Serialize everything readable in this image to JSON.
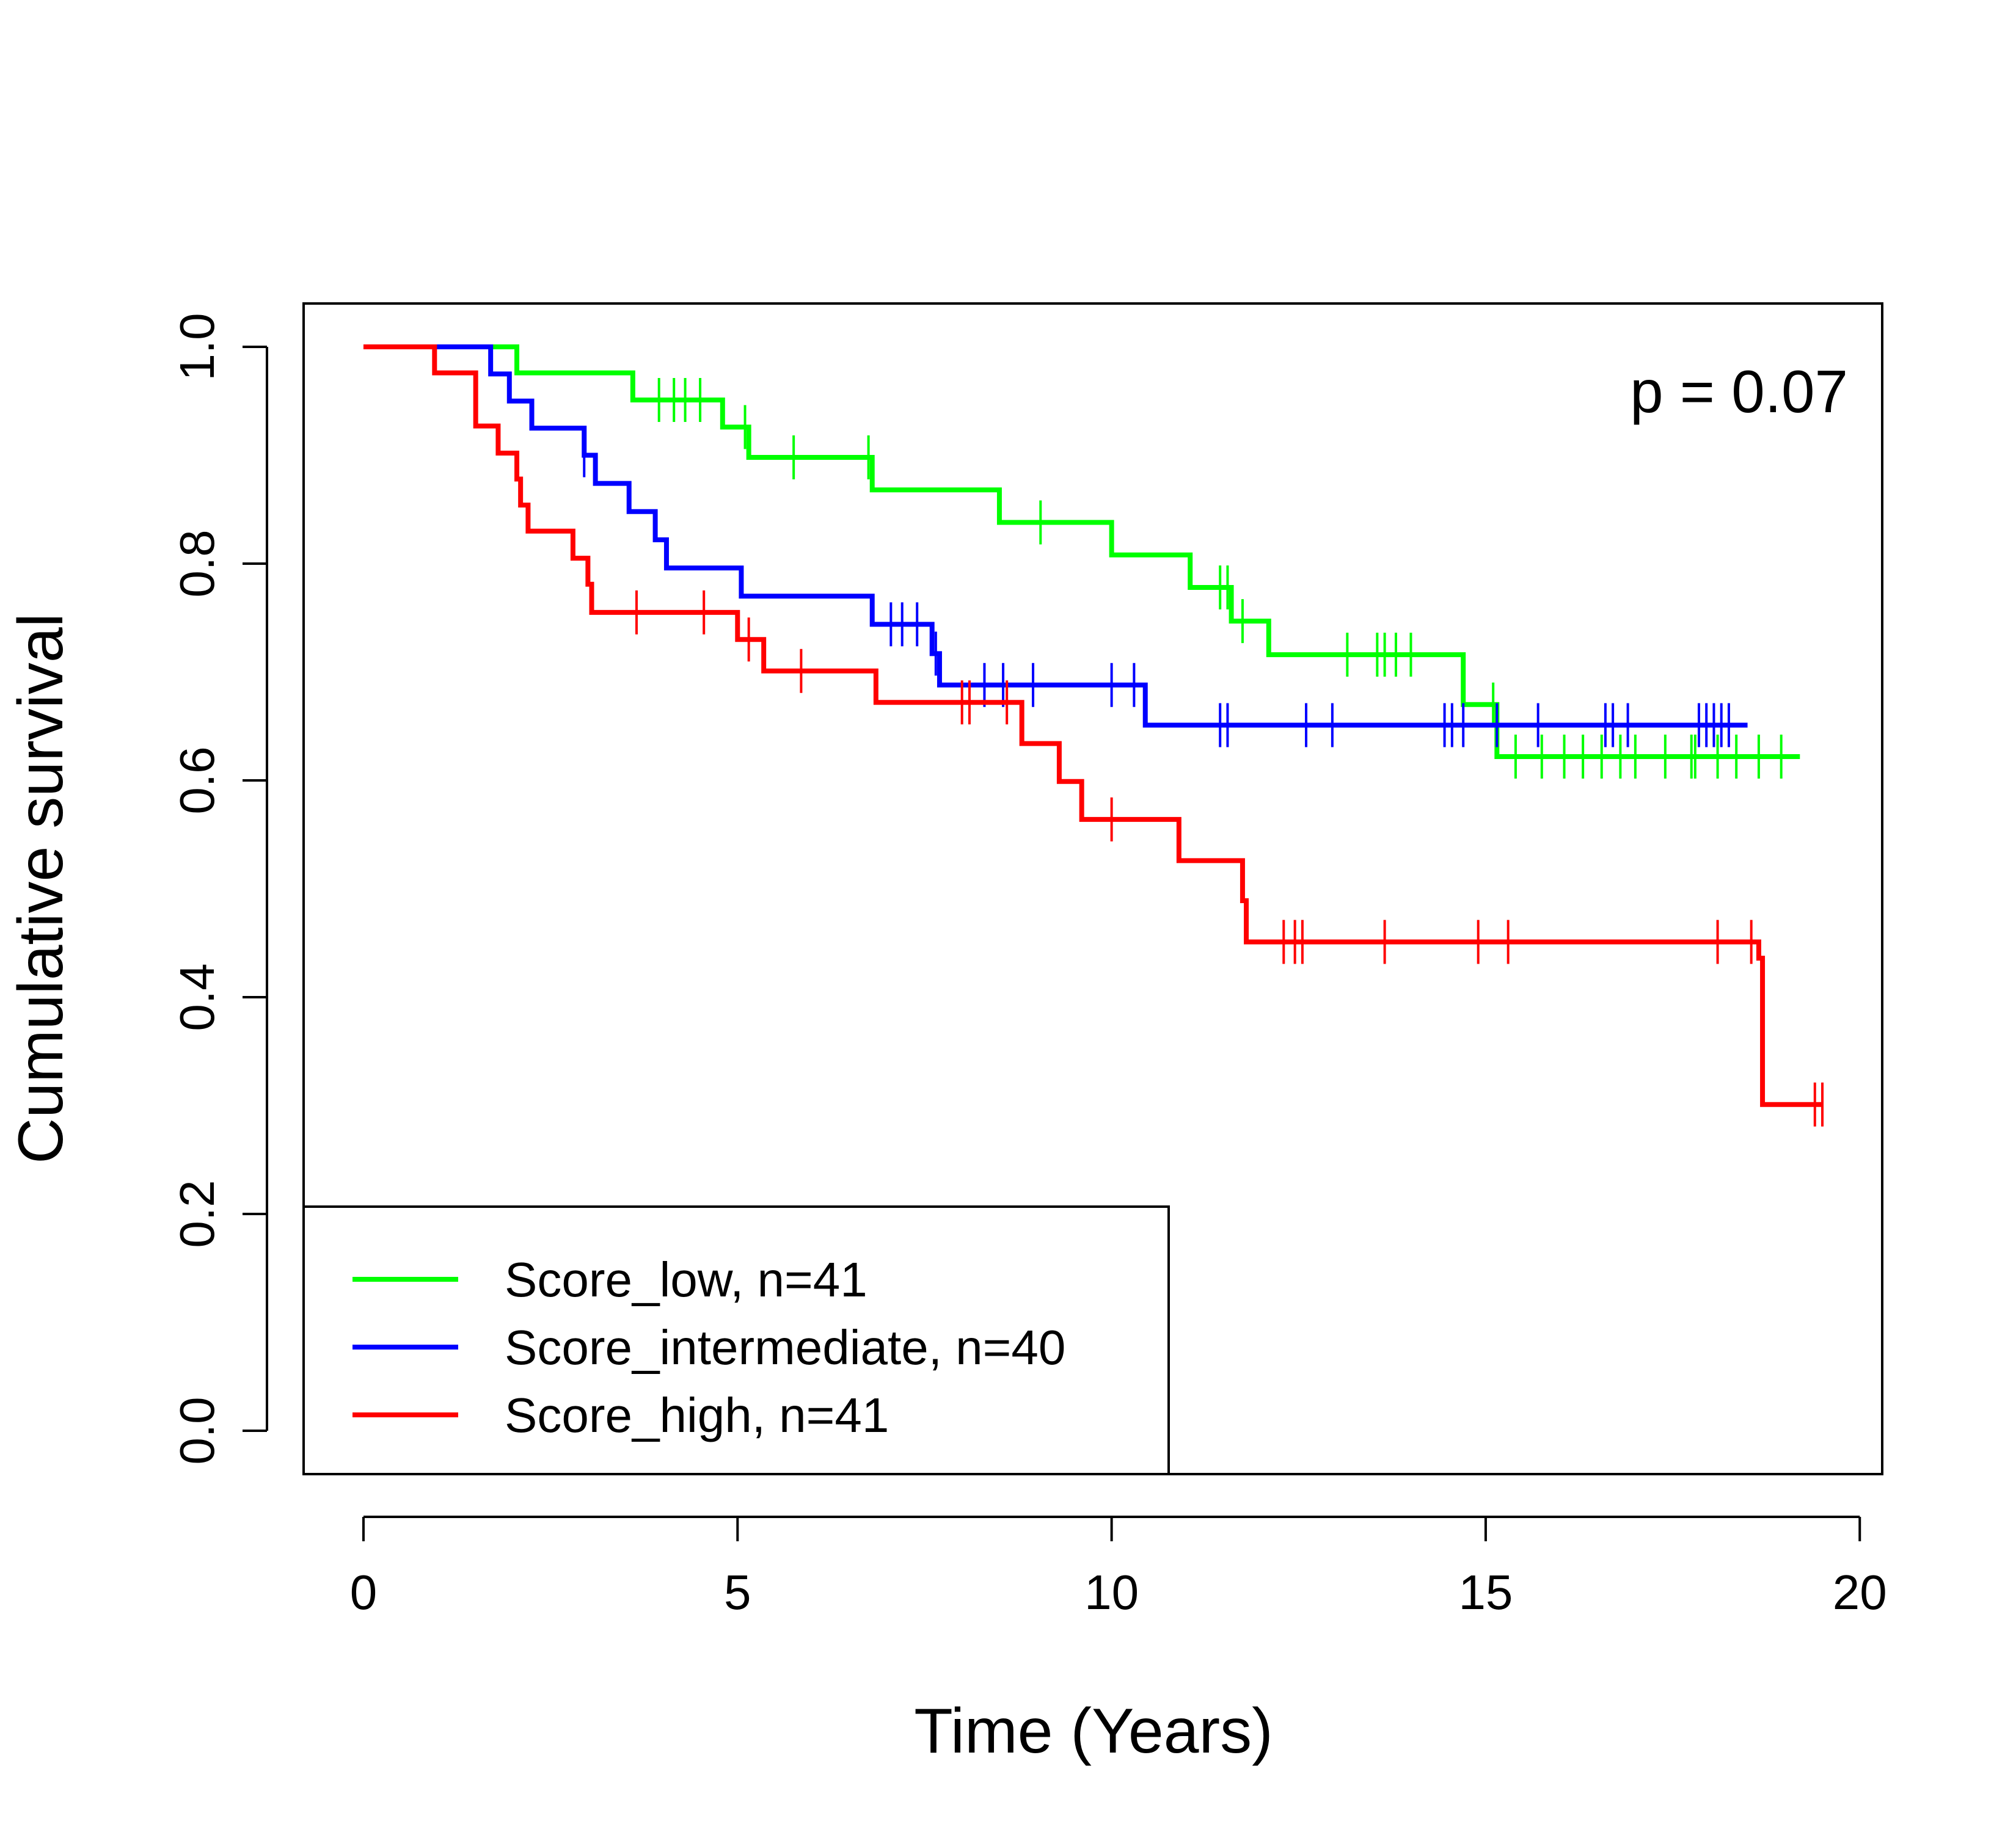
{
  "chart_data": {
    "type": "line",
    "subtype": "kaplan-meier step curves with censoring ticks",
    "xlabel": "Time (Years)",
    "ylabel": "Cumulative survival",
    "xlim": [
      -0.8,
      20.3
    ],
    "ylim": [
      -0.04,
      1.04
    ],
    "xticks": [
      0,
      5,
      10,
      15,
      20
    ],
    "xtick_labels": [
      "0",
      "5",
      "10",
      "15",
      "20"
    ],
    "yticks": [
      0.0,
      0.2,
      0.4,
      0.6,
      0.8,
      1.0
    ],
    "ytick_labels": [
      "0.0",
      "0.2",
      "0.4",
      "0.6",
      "0.8",
      "1.0"
    ],
    "grid": false,
    "annotation": "p = 0.07",
    "legend_position": "bottom-left",
    "series": [
      {
        "name": "Score_low, n=41",
        "color": "#00ff00",
        "steps": [
          [
            0,
            1.0
          ],
          [
            2.05,
            0.976
          ],
          [
            3.6,
            0.951
          ],
          [
            4.8,
            0.926
          ],
          [
            5.15,
            0.898
          ],
          [
            6.8,
            0.868
          ],
          [
            8.5,
            0.838
          ],
          [
            10.0,
            0.808
          ],
          [
            11.05,
            0.778
          ],
          [
            11.6,
            0.747
          ],
          [
            12.1,
            0.716
          ],
          [
            14.7,
            0.67
          ],
          [
            15.15,
            0.622
          ]
        ],
        "end_x": 19.2,
        "censor_times": [
          3.95,
          4.15,
          4.3,
          4.5,
          5.1,
          5.75,
          6.75,
          9.05,
          11.45,
          11.55,
          11.75,
          13.15,
          13.55,
          13.65,
          13.8,
          14.0,
          15.1,
          15.4,
          15.75,
          16.05,
          16.3,
          16.55,
          16.8,
          17.0,
          17.4,
          17.75,
          17.8,
          18.1,
          18.35,
          18.65,
          18.95
        ]
      },
      {
        "name": "Score_intermediate, n=40",
        "color": "#0000ff",
        "steps": [
          [
            0,
            1.0
          ],
          [
            1.7,
            0.975
          ],
          [
            1.95,
            0.95
          ],
          [
            2.25,
            0.925
          ],
          [
            2.95,
            0.9
          ],
          [
            3.1,
            0.874
          ],
          [
            3.55,
            0.848
          ],
          [
            3.9,
            0.822
          ],
          [
            4.05,
            0.796
          ],
          [
            5.05,
            0.77
          ],
          [
            6.8,
            0.744
          ],
          [
            7.6,
            0.717
          ],
          [
            7.7,
            0.688
          ],
          [
            10.45,
            0.651
          ]
        ],
        "end_x": 18.5,
        "censor_times": [
          2.95,
          7.05,
          7.2,
          7.4,
          7.65,
          8.3,
          8.55,
          8.95,
          10.0,
          10.3,
          11.45,
          11.55,
          12.6,
          12.95,
          14.45,
          14.55,
          14.7,
          15.15,
          15.7,
          16.6,
          16.7,
          16.9,
          17.85,
          17.95,
          18.05,
          18.15,
          18.25
        ]
      },
      {
        "name": "Score_high, n=41",
        "color": "#ff0000",
        "steps": [
          [
            0,
            1.0
          ],
          [
            0.95,
            0.976
          ],
          [
            1.5,
            0.927
          ],
          [
            1.8,
            0.902
          ],
          [
            2.05,
            0.878
          ],
          [
            2.1,
            0.854
          ],
          [
            2.2,
            0.83
          ],
          [
            2.8,
            0.805
          ],
          [
            3.0,
            0.781
          ],
          [
            3.05,
            0.755
          ],
          [
            5.0,
            0.73
          ],
          [
            5.35,
            0.701
          ],
          [
            6.85,
            0.672
          ],
          [
            8.8,
            0.634
          ],
          [
            9.3,
            0.599
          ],
          [
            9.6,
            0.564
          ],
          [
            10.9,
            0.526
          ],
          [
            11.75,
            0.489
          ],
          [
            11.8,
            0.451
          ],
          [
            18.65,
            0.436
          ],
          [
            18.7,
            0.301
          ]
        ],
        "end_x": 19.5,
        "censor_times": [
          3.65,
          4.55,
          5.15,
          5.85,
          8.0,
          8.1,
          8.6,
          10.0,
          12.3,
          12.45,
          12.55,
          13.65,
          14.9,
          15.3,
          18.1,
          18.55,
          19.4,
          19.5
        ]
      }
    ]
  }
}
